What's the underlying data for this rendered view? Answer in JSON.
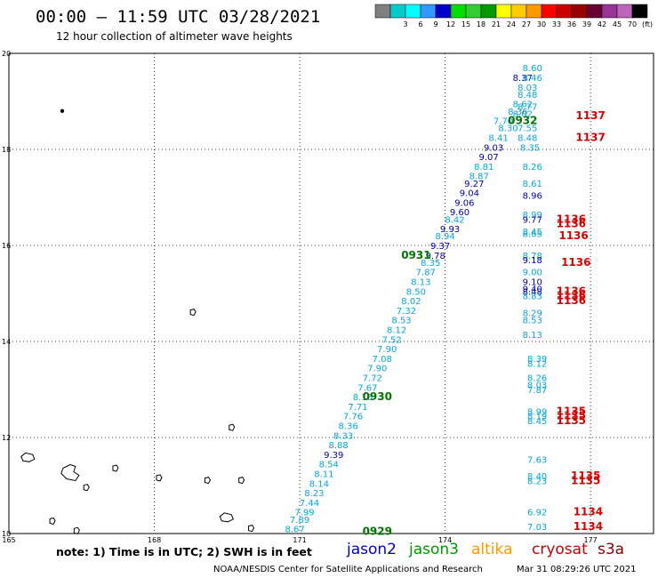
{
  "header": {
    "title": "00:00 – 11:59 UTC 03/28/2021",
    "subtitle": "12 hour collection of altimeter wave heights"
  },
  "colorbar": {
    "unit": "(ft)",
    "bins": [
      {
        "color": "#7f7f7f",
        "label": ""
      },
      {
        "color": "#00cccc",
        "label": "3"
      },
      {
        "color": "#00ffff",
        "label": "6"
      },
      {
        "color": "#3399ff",
        "label": "9"
      },
      {
        "color": "#0000cc",
        "label": "12"
      },
      {
        "color": "#00dd00",
        "label": "15"
      },
      {
        "color": "#33cc33",
        "label": "18"
      },
      {
        "color": "#009900",
        "label": "21"
      },
      {
        "color": "#ffff00",
        "label": "24"
      },
      {
        "color": "#ffcc00",
        "label": "27"
      },
      {
        "color": "#ff9900",
        "label": "30"
      },
      {
        "color": "#ff0000",
        "label": "33"
      },
      {
        "color": "#cc0000",
        "label": "36"
      },
      {
        "color": "#990000",
        "label": "39"
      },
      {
        "color": "#660033",
        "label": "42"
      },
      {
        "color": "#993399",
        "label": "45"
      },
      {
        "color": "#bb66bb",
        "label": "70"
      },
      {
        "color": "#000000",
        "label": ""
      }
    ]
  },
  "axes": {
    "lat_ticks": [
      "10",
      "12",
      "14",
      "16",
      "18",
      "20"
    ],
    "lon_ticks": [
      "165",
      "168",
      "171",
      "174",
      "177"
    ],
    "lat_range": [
      10,
      20
    ],
    "lon_range": [
      165,
      178.3
    ]
  },
  "colors": {
    "light_blue": "#00aadd",
    "dark_blue": "#0000aa",
    "green": "#007700",
    "red": "#dd0000"
  },
  "observations": [
    {
      "lon": 175.8,
      "lat": 19.7,
      "text": "8.60",
      "c": "light_blue"
    },
    {
      "lon": 175.6,
      "lat": 19.5,
      "text": "8.37",
      "c": "dark_blue"
    },
    {
      "lon": 175.8,
      "lat": 19.5,
      "text": "8.46",
      "c": "light_blue"
    },
    {
      "lon": 175.7,
      "lat": 19.3,
      "text": "8.03",
      "c": "light_blue"
    },
    {
      "lon": 175.7,
      "lat": 19.15,
      "text": "8.48",
      "c": "light_blue"
    },
    {
      "lon": 175.6,
      "lat": 18.95,
      "text": "8.62",
      "c": "light_blue"
    },
    {
      "lon": 175.7,
      "lat": 18.9,
      "text": "8.77",
      "c": "light_blue"
    },
    {
      "lon": 175.5,
      "lat": 18.8,
      "text": "8.36",
      "c": "light_blue"
    },
    {
      "lon": 175.6,
      "lat": 18.75,
      "text": "8.02",
      "c": "light_blue"
    },
    {
      "lon": 175.2,
      "lat": 18.6,
      "text": "7.70",
      "c": "light_blue"
    },
    {
      "lon": 175.7,
      "lat": 18.45,
      "text": "7.55",
      "c": "light_blue"
    },
    {
      "lon": 175.3,
      "lat": 18.45,
      "text": "8.30",
      "c": "light_blue"
    },
    {
      "lon": 175.1,
      "lat": 18.25,
      "text": "8.41",
      "c": "light_blue"
    },
    {
      "lon": 175.7,
      "lat": 18.25,
      "text": "8.48",
      "c": "light_blue"
    },
    {
      "lon": 175.0,
      "lat": 18.05,
      "text": "9.03",
      "c": "dark_blue"
    },
    {
      "lon": 175.75,
      "lat": 18.05,
      "text": "8.35",
      "c": "light_blue"
    },
    {
      "lon": 174.9,
      "lat": 17.85,
      "text": "9.07",
      "c": "dark_blue"
    },
    {
      "lon": 174.8,
      "lat": 17.65,
      "text": "8.81",
      "c": "light_blue"
    },
    {
      "lon": 175.8,
      "lat": 17.65,
      "text": "8.26",
      "c": "light_blue"
    },
    {
      "lon": 174.7,
      "lat": 17.45,
      "text": "8.87",
      "c": "light_blue"
    },
    {
      "lon": 174.6,
      "lat": 17.3,
      "text": "9.27",
      "c": "dark_blue"
    },
    {
      "lon": 175.8,
      "lat": 17.3,
      "text": "8.61",
      "c": "light_blue"
    },
    {
      "lon": 174.5,
      "lat": 17.1,
      "text": "9.04",
      "c": "dark_blue"
    },
    {
      "lon": 175.8,
      "lat": 17.05,
      "text": "8.96",
      "c": "dark_blue"
    },
    {
      "lon": 174.4,
      "lat": 16.9,
      "text": "9.06",
      "c": "dark_blue"
    },
    {
      "lon": 174.3,
      "lat": 16.7,
      "text": "9.60",
      "c": "dark_blue"
    },
    {
      "lon": 175.8,
      "lat": 16.65,
      "text": "8.99",
      "c": "light_blue"
    },
    {
      "lon": 174.2,
      "lat": 16.55,
      "text": "8.42",
      "c": "light_blue"
    },
    {
      "lon": 175.8,
      "lat": 16.55,
      "text": "9.77",
      "c": "dark_blue"
    },
    {
      "lon": 174.1,
      "lat": 16.35,
      "text": "9.93",
      "c": "dark_blue"
    },
    {
      "lon": 175.8,
      "lat": 16.3,
      "text": "8.45",
      "c": "light_blue"
    },
    {
      "lon": 175.8,
      "lat": 16.25,
      "text": "8.65",
      "c": "light_blue"
    },
    {
      "lon": 174.0,
      "lat": 16.2,
      "text": "8.94",
      "c": "light_blue"
    },
    {
      "lon": 173.9,
      "lat": 16.0,
      "text": "9.37",
      "c": "dark_blue"
    },
    {
      "lon": 173.8,
      "lat": 15.8,
      "text": "9.78",
      "c": "dark_blue"
    },
    {
      "lon": 175.8,
      "lat": 15.8,
      "text": "8.78",
      "c": "light_blue"
    },
    {
      "lon": 175.8,
      "lat": 15.7,
      "text": "9.18",
      "c": "dark_blue"
    },
    {
      "lon": 173.7,
      "lat": 15.65,
      "text": "8.35",
      "c": "light_blue"
    },
    {
      "lon": 173.6,
      "lat": 15.45,
      "text": "7.87",
      "c": "light_blue"
    },
    {
      "lon": 175.8,
      "lat": 15.45,
      "text": "9.00",
      "c": "light_blue"
    },
    {
      "lon": 173.5,
      "lat": 15.25,
      "text": "8.13",
      "c": "light_blue"
    },
    {
      "lon": 175.8,
      "lat": 15.25,
      "text": "9.10",
      "c": "dark_blue"
    },
    {
      "lon": 173.4,
      "lat": 15.05,
      "text": "8.50",
      "c": "light_blue"
    },
    {
      "lon": 175.8,
      "lat": 15.1,
      "text": "9.40",
      "c": "dark_blue"
    },
    {
      "lon": 175.8,
      "lat": 15.05,
      "text": "8.48",
      "c": "dark_blue"
    },
    {
      "lon": 175.8,
      "lat": 14.95,
      "text": "8.83",
      "c": "light_blue"
    },
    {
      "lon": 173.3,
      "lat": 14.85,
      "text": "8.02",
      "c": "light_blue"
    },
    {
      "lon": 173.2,
      "lat": 14.65,
      "text": "7.32",
      "c": "light_blue"
    },
    {
      "lon": 175.8,
      "lat": 14.6,
      "text": "8.29",
      "c": "light_blue"
    },
    {
      "lon": 173.1,
      "lat": 14.45,
      "text": "8.53",
      "c": "light_blue"
    },
    {
      "lon": 175.8,
      "lat": 14.45,
      "text": "8.53",
      "c": "light_blue"
    },
    {
      "lon": 173.0,
      "lat": 14.25,
      "text": "8.12",
      "c": "light_blue"
    },
    {
      "lon": 175.8,
      "lat": 14.15,
      "text": "8.13",
      "c": "light_blue"
    },
    {
      "lon": 172.9,
      "lat": 14.05,
      "text": "7.52",
      "c": "light_blue"
    },
    {
      "lon": 172.8,
      "lat": 13.85,
      "text": "7.90",
      "c": "light_blue"
    },
    {
      "lon": 172.7,
      "lat": 13.65,
      "text": "7.08",
      "c": "light_blue"
    },
    {
      "lon": 175.9,
      "lat": 13.65,
      "text": "8.39",
      "c": "light_blue"
    },
    {
      "lon": 172.6,
      "lat": 13.45,
      "text": "7.90",
      "c": "light_blue"
    },
    {
      "lon": 175.9,
      "lat": 13.55,
      "text": "8.12",
      "c": "light_blue"
    },
    {
      "lon": 172.5,
      "lat": 13.25,
      "text": "7.72",
      "c": "light_blue"
    },
    {
      "lon": 175.9,
      "lat": 13.25,
      "text": "8.26",
      "c": "light_blue"
    },
    {
      "lon": 172.4,
      "lat": 13.05,
      "text": "7.67",
      "c": "light_blue"
    },
    {
      "lon": 175.9,
      "lat": 13.1,
      "text": "8.03",
      "c": "light_blue"
    },
    {
      "lon": 175.9,
      "lat": 13.0,
      "text": "7.87",
      "c": "light_blue"
    },
    {
      "lon": 172.3,
      "lat": 12.85,
      "text": "8.16",
      "c": "light_blue"
    },
    {
      "lon": 172.2,
      "lat": 12.65,
      "text": "7.71",
      "c": "light_blue"
    },
    {
      "lon": 175.9,
      "lat": 12.55,
      "text": "8.99",
      "c": "light_blue"
    },
    {
      "lon": 172.1,
      "lat": 12.45,
      "text": "7.76",
      "c": "light_blue"
    },
    {
      "lon": 175.9,
      "lat": 12.45,
      "text": "8.19",
      "c": "light_blue"
    },
    {
      "lon": 175.9,
      "lat": 12.35,
      "text": "8.45",
      "c": "light_blue"
    },
    {
      "lon": 172.0,
      "lat": 12.25,
      "text": "8.36",
      "c": "light_blue"
    },
    {
      "lon": 171.9,
      "lat": 12.05,
      "text": "8.33",
      "c": "light_blue"
    },
    {
      "lon": 171.8,
      "lat": 11.85,
      "text": "8.88",
      "c": "light_blue"
    },
    {
      "lon": 171.7,
      "lat": 11.65,
      "text": "9.39",
      "c": "dark_blue"
    },
    {
      "lon": 175.9,
      "lat": 11.55,
      "text": "7.63",
      "c": "light_blue"
    },
    {
      "lon": 171.6,
      "lat": 11.45,
      "text": "8.54",
      "c": "light_blue"
    },
    {
      "lon": 171.5,
      "lat": 11.25,
      "text": "8.11",
      "c": "light_blue"
    },
    {
      "lon": 175.9,
      "lat": 11.2,
      "text": "8.40",
      "c": "light_blue"
    },
    {
      "lon": 175.9,
      "lat": 11.1,
      "text": "8.23",
      "c": "light_blue"
    },
    {
      "lon": 171.4,
      "lat": 11.05,
      "text": "8.14",
      "c": "light_blue"
    },
    {
      "lon": 171.3,
      "lat": 10.85,
      "text": "8.23",
      "c": "light_blue"
    },
    {
      "lon": 171.2,
      "lat": 10.65,
      "text": "7.44",
      "c": "light_blue"
    },
    {
      "lon": 171.1,
      "lat": 10.45,
      "text": "7.99",
      "c": "light_blue"
    },
    {
      "lon": 175.9,
      "lat": 10.45,
      "text": "6.92",
      "c": "light_blue"
    },
    {
      "lon": 171.0,
      "lat": 10.3,
      "text": "7.89",
      "c": "light_blue"
    },
    {
      "lon": 170.9,
      "lat": 10.1,
      "text": "8.67",
      "c": "light_blue"
    },
    {
      "lon": 175.9,
      "lat": 10.15,
      "text": "7.03",
      "c": "light_blue"
    }
  ],
  "time_labels": [
    {
      "lon": 175.6,
      "lat": 18.6,
      "text": "0932",
      "c": "green"
    },
    {
      "lon": 177.0,
      "lat": 18.7,
      "text": "1137",
      "c": "red"
    },
    {
      "lon": 177.0,
      "lat": 18.25,
      "text": "1137",
      "c": "red"
    },
    {
      "lon": 176.6,
      "lat": 16.55,
      "text": "1136",
      "c": "red"
    },
    {
      "lon": 176.6,
      "lat": 16.45,
      "text": "1136",
      "c": "red"
    },
    {
      "lon": 176.65,
      "lat": 16.2,
      "text": "1136",
      "c": "red"
    },
    {
      "lon": 173.4,
      "lat": 15.8,
      "text": "0931",
      "c": "green"
    },
    {
      "lon": 176.7,
      "lat": 15.65,
      "text": "1136",
      "c": "red"
    },
    {
      "lon": 176.6,
      "lat": 15.05,
      "text": "1136",
      "c": "red"
    },
    {
      "lon": 176.6,
      "lat": 14.95,
      "text": "1136",
      "c": "red"
    },
    {
      "lon": 176.6,
      "lat": 14.85,
      "text": "1136",
      "c": "red"
    },
    {
      "lon": 172.6,
      "lat": 12.85,
      "text": "0930",
      "c": "green"
    },
    {
      "lon": 176.6,
      "lat": 12.55,
      "text": "1135",
      "c": "red"
    },
    {
      "lon": 176.6,
      "lat": 12.45,
      "text": "1135",
      "c": "red"
    },
    {
      "lon": 176.6,
      "lat": 12.35,
      "text": "1135",
      "c": "red"
    },
    {
      "lon": 176.9,
      "lat": 11.2,
      "text": "1135",
      "c": "red"
    },
    {
      "lon": 176.9,
      "lat": 11.1,
      "text": "1135",
      "c": "red"
    },
    {
      "lon": 176.95,
      "lat": 10.45,
      "text": "1134",
      "c": "red"
    },
    {
      "lon": 176.95,
      "lat": 10.15,
      "text": "1134",
      "c": "red"
    },
    {
      "lon": 172.6,
      "lat": 10.05,
      "text": "0929",
      "c": "green"
    }
  ],
  "land": [
    {
      "lon": 166.1,
      "lat": 18.8,
      "shape": "dot"
    },
    {
      "lon": 168.8,
      "lat": 14.6,
      "shape": "island"
    },
    {
      "lon": 169.6,
      "lat": 12.2,
      "shape": "island"
    },
    {
      "lon": 165.4,
      "lat": 11.55,
      "shape": "atoll"
    },
    {
      "lon": 166.3,
      "lat": 11.25,
      "shape": "atoll-big"
    },
    {
      "lon": 167.2,
      "lat": 11.35,
      "shape": "island"
    },
    {
      "lon": 168.1,
      "lat": 11.15,
      "shape": "island"
    },
    {
      "lon": 169.1,
      "lat": 11.1,
      "shape": "island"
    },
    {
      "lon": 169.8,
      "lat": 11.1,
      "shape": "island"
    },
    {
      "lon": 166.6,
      "lat": 10.95,
      "shape": "island"
    },
    {
      "lon": 169.5,
      "lat": 10.3,
      "shape": "atoll"
    },
    {
      "lon": 165.9,
      "lat": 10.25,
      "shape": "island"
    },
    {
      "lon": 166.4,
      "lat": 10.05,
      "shape": "island"
    },
    {
      "lon": 170.0,
      "lat": 10.1,
      "shape": "island"
    }
  ],
  "footer": {
    "note": "note: 1) Time is in UTC; 2) SWH is in feet",
    "satellites": [
      {
        "name": "jason2",
        "color": "#0000cc"
      },
      {
        "name": "jason3",
        "color": "#009900"
      },
      {
        "name": "altika",
        "color": "#ff9900"
      },
      {
        "name": "cryosat",
        "color": "#cc0000"
      },
      {
        "name": "s3a",
        "color": "#880000"
      }
    ],
    "credit": "NOAA/NESDIS Center for Satellite Applications and Research",
    "timestamp": "Mar 31 08:29:26 UTC 2021"
  }
}
